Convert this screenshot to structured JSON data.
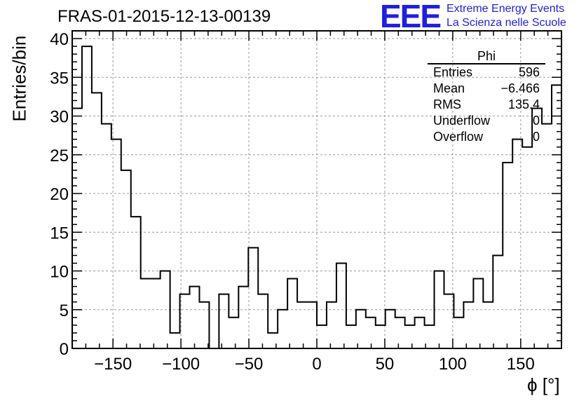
{
  "title": "FRAS-01-2015-12-13-00139",
  "logo": {
    "mark": "EEE",
    "line1": "Extreme Energy Events",
    "line2": "La Scienza nelle Scuole",
    "color": "#1f1fe0"
  },
  "stats": {
    "name": "Phi",
    "rows": [
      {
        "label": "Entries",
        "value": "596"
      },
      {
        "label": "Mean",
        "value": "−6.466"
      },
      {
        "label": "RMS",
        "value": "135.4"
      },
      {
        "label": "Underflow",
        "value": "0"
      },
      {
        "label": "Overflow",
        "value": "0"
      }
    ]
  },
  "chart_data": {
    "type": "bar",
    "style": "step-histogram",
    "title": "FRAS-01-2015-12-13-00139",
    "xlabel": "ϕ [°]",
    "ylabel": "Entries/bin",
    "xlim": [
      -180,
      180
    ],
    "ylim": [
      0,
      41
    ],
    "bin_width": 7.2,
    "bin_edges_start": -180,
    "xticks": [
      -150,
      -100,
      -50,
      0,
      50,
      100,
      150
    ],
    "xtick_labels": [
      "−150",
      "−100",
      "−50",
      "0",
      "50",
      "100",
      "150"
    ],
    "yticks": [
      0,
      5,
      10,
      15,
      20,
      25,
      30,
      35,
      40
    ],
    "ytick_labels": [
      "0",
      "5",
      "10",
      "15",
      "20",
      "25",
      "30",
      "35",
      "40"
    ],
    "grid": true,
    "line_color": "#000000",
    "values": [
      31,
      39,
      33,
      29,
      27,
      23,
      17,
      9,
      9,
      10,
      2,
      7,
      8,
      6,
      0,
      7,
      4,
      8,
      13,
      7,
      2,
      5,
      9,
      6,
      6,
      3,
      6,
      11,
      3,
      5,
      4,
      3,
      5,
      4,
      3,
      4,
      3,
      10,
      7,
      4,
      6,
      9,
      6,
      12,
      24,
      27,
      26,
      31,
      29,
      34
    ]
  }
}
